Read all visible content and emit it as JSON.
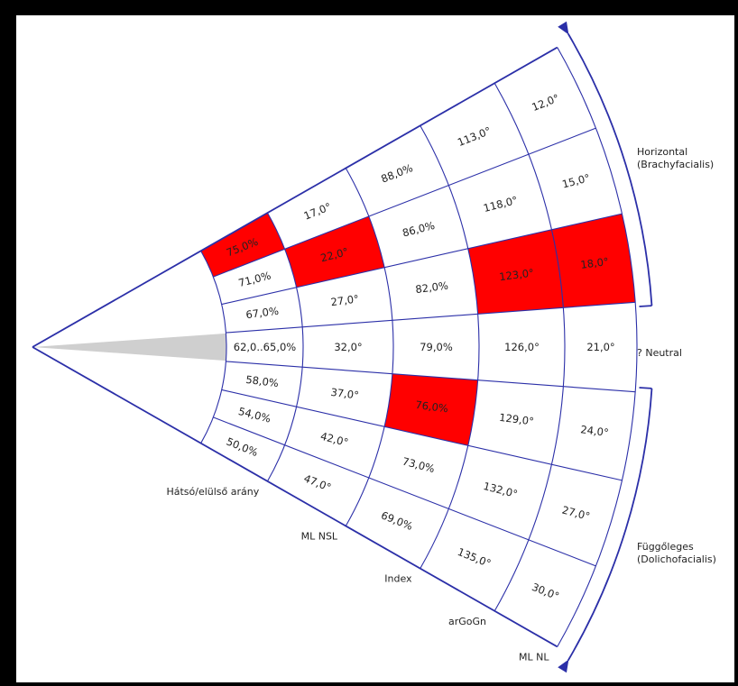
{
  "colors": {
    "grid": "#2b2fa8",
    "highlight": "#ff0000",
    "neutral_wedge": "#cfcfcf",
    "background": "#ffffff",
    "frame": "#000000"
  },
  "columns": [
    "Hátsó/elülső arány",
    "ML NSL",
    "Index",
    "arGoGn",
    "ML NL"
  ],
  "rows": [
    [
      "75,0%",
      "17,0°",
      "88,0%",
      "113,0°",
      "12,0°"
    ],
    [
      "71,0%",
      "22,0°",
      "86,0%",
      "118,0°",
      "15,0°"
    ],
    [
      "67,0%",
      "27,0°",
      "82,0%",
      "123,0°",
      "18,0°"
    ],
    [
      "62,0..65,0%",
      "32,0°",
      "79,0%",
      "126,0°",
      "21,0°"
    ],
    [
      "58,0%",
      "37,0°",
      "76,0%",
      "129,0°",
      "24,0°"
    ],
    [
      "54,0%",
      "42,0°",
      "73,0%",
      "132,0°",
      "27,0°"
    ],
    [
      "50,0%",
      "47,0°",
      "69,0%",
      "135,0°",
      "30,0°"
    ]
  ],
  "highlighted": [
    {
      "row": 0,
      "col": 0
    },
    {
      "row": 1,
      "col": 1
    },
    {
      "row": 2,
      "col": 3
    },
    {
      "row": 2,
      "col": 4
    },
    {
      "row": 4,
      "col": 2
    }
  ],
  "side_labels": {
    "horizontal_line1": "Horizontal",
    "horizontal_line2": "(Brachyfacialis)",
    "neutral": "? Neutral",
    "vertical_line1": "Függőleges",
    "vertical_line2": "(Dolichofacialis)"
  }
}
